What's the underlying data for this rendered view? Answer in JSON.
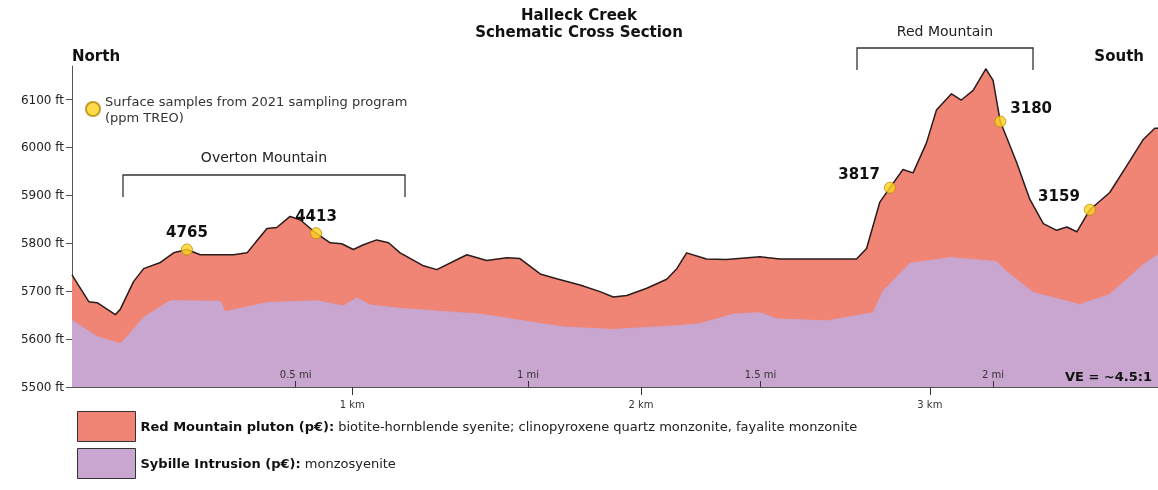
{
  "chart_data": {
    "type": "area",
    "title": "Halleck Creek",
    "subtitle": "Schematic Cross Section",
    "annotations": [
      "North",
      "South",
      "VE = ~4.5:1",
      "Overton Mountain",
      "Red Mountain",
      {
        "text": "4765",
        "x": 0.428,
        "y": 5787
      },
      {
        "text": "4413",
        "x": 0.875,
        "y": 5821
      },
      {
        "text": "3817",
        "x": 2.862,
        "y": 5916
      },
      {
        "text": "3180",
        "x": 3.244,
        "y": 6054
      },
      {
        "text": "3159",
        "x": 3.554,
        "y": 5870
      }
    ],
    "series": [
      {
        "name": "Red Mountain pluton (p€): biotite-hornblende syenite; clinopyroxene quartz monzonite, fayalite monzonite",
        "color": "#f08575",
        "x": [
          0.03,
          0.088,
          0.117,
          0.18,
          0.197,
          0.243,
          0.278,
          0.336,
          0.382,
          0.428,
          0.474,
          0.589,
          0.636,
          0.705,
          0.739,
          0.785,
          0.82,
          0.875,
          0.924,
          0.964,
          1.004,
          1.039,
          1.085,
          1.126,
          1.166,
          1.247,
          1.293,
          1.397,
          1.466,
          1.535,
          1.581,
          1.651,
          1.708,
          1.789,
          1.858,
          1.904,
          1.951,
          2.02,
          2.089,
          2.124,
          2.158,
          2.227,
          2.296,
          2.412,
          2.481,
          2.746,
          2.781,
          2.827,
          2.862,
          2.907,
          2.942,
          2.988,
          3.023,
          3.075,
          3.109,
          3.15,
          3.194,
          3.219,
          3.244,
          3.301,
          3.346,
          3.393,
          3.439,
          3.474,
          3.509,
          3.554,
          3.623,
          3.681,
          3.738,
          3.779,
          3.79
        ],
        "values": [
          5734,
          5678,
          5676,
          5651,
          5662,
          5720,
          5747,
          5760,
          5780,
          5787,
          5776,
          5776,
          5780,
          5831,
          5833,
          5856,
          5849,
          5821,
          5801,
          5799,
          5787,
          5797,
          5807,
          5801,
          5780,
          5753,
          5745,
          5776,
          5764,
          5770,
          5768,
          5736,
          5726,
          5713,
          5699,
          5688,
          5691,
          5706,
          5725,
          5747,
          5780,
          5767,
          5766,
          5772,
          5767,
          5767,
          5789,
          5886,
          5916,
          5954,
          5947,
          6009,
          6078,
          6112,
          6099,
          6119,
          6164,
          6140,
          6054,
          5968,
          5892,
          5841,
          5827,
          5834,
          5824,
          5870,
          5906,
          5961,
          6016,
          6040,
          6040
        ]
      },
      {
        "name": "Sybille Intrusion (p€): monzosyenite",
        "color": "#c9a6cf",
        "x": [
          0.03,
          0.117,
          0.199,
          0.278,
          0.37,
          0.543,
          0.56,
          0.705,
          0.878,
          0.97,
          1.016,
          1.062,
          1.166,
          1.443,
          1.731,
          1.904,
          2.135,
          2.204,
          2.32,
          2.412,
          2.47,
          2.643,
          2.804,
          2.838,
          2.931,
          3.069,
          3.23,
          3.265,
          3.358,
          3.519,
          3.623,
          3.738,
          3.79
        ],
        "values": [
          5639,
          5605,
          5590,
          5645,
          5680,
          5679,
          5657,
          5676,
          5680,
          5669,
          5686,
          5671,
          5664,
          5652,
          5625,
          5620,
          5628,
          5632,
          5652,
          5655,
          5642,
          5638,
          5655,
          5700,
          5758,
          5770,
          5762,
          5741,
          5697,
          5672,
          5693,
          5755,
          5776
        ]
      },
      {
        "type": "scatter",
        "name": "Surface samples from 2021 sampling program (ppm TREO)",
        "color": "#ffd21f",
        "x": [
          0.428,
          0.875,
          2.862,
          3.244,
          3.554
        ],
        "values": [
          5787,
          5821,
          5916,
          6054,
          5870
        ]
      }
    ],
    "xlim": [
      0.03,
      3.79
    ],
    "xticks": [
      {
        "value": 1,
        "label": "1 km"
      },
      {
        "value": 2,
        "label": "2 km"
      },
      {
        "value": 3,
        "label": "3 km"
      }
    ],
    "x2lim": [
      0.019,
      2.355
    ],
    "x2ticks": [
      {
        "value": 0.5,
        "label": "0.5 mi"
      },
      {
        "value": 1,
        "label": "1 mi"
      },
      {
        "value": 1.5,
        "label": "1.5 mi"
      },
      {
        "value": 2,
        "label": "2 mi"
      }
    ],
    "ylim": [
      5500,
      6170
    ],
    "yticks": [
      {
        "value": 5500,
        "label": "5500 ft"
      },
      {
        "value": 5600,
        "label": "5600 ft"
      },
      {
        "value": 5700,
        "label": "5700 ft"
      },
      {
        "value": 5800,
        "label": "5800 ft"
      },
      {
        "value": 5900,
        "label": "5900 ft"
      },
      {
        "value": 6000,
        "label": "6000 ft"
      },
      {
        "value": 6100,
        "label": "6100 ft"
      }
    ],
    "grid": false,
    "legend": "bottom"
  }
}
